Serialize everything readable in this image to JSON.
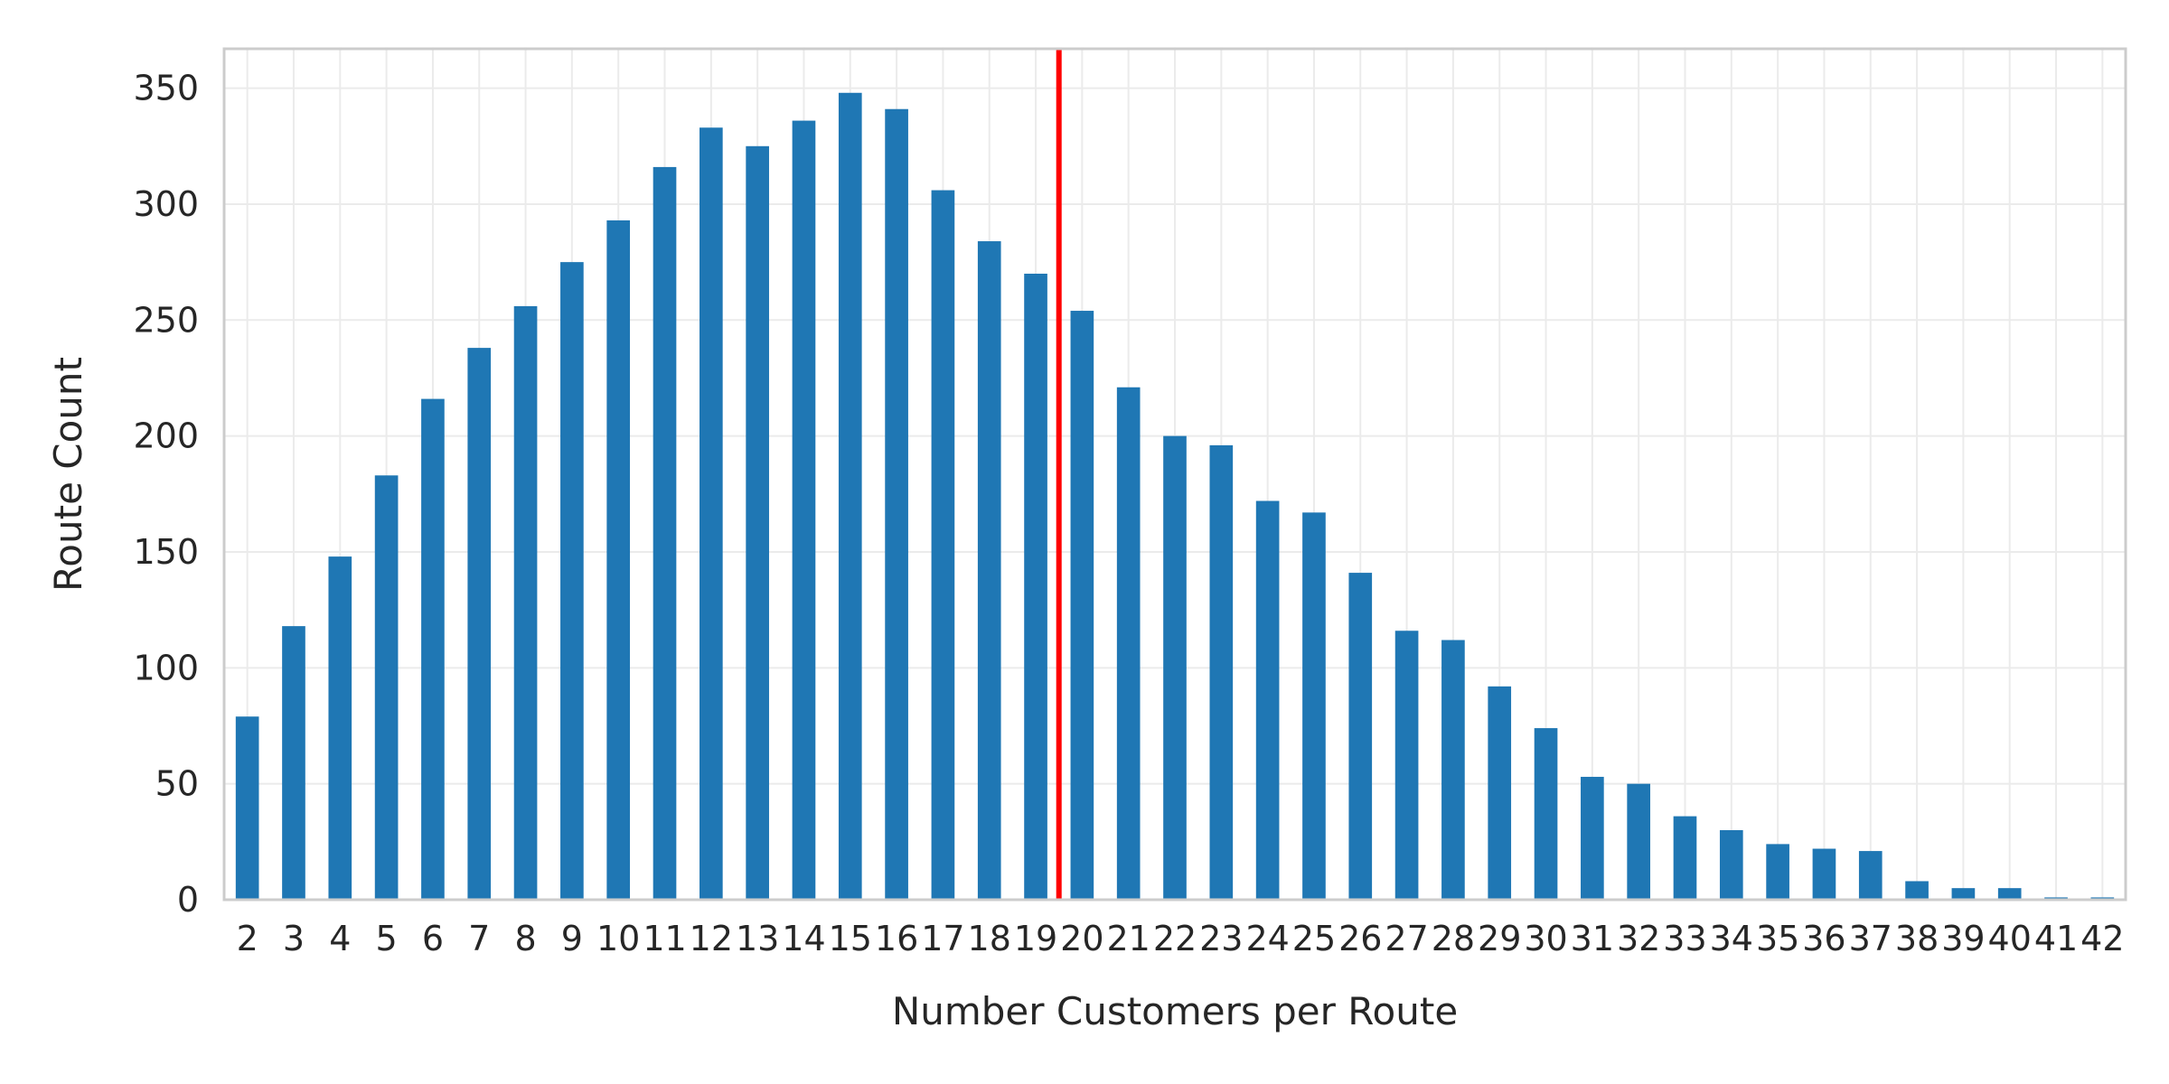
{
  "chart_data": {
    "type": "bar",
    "title": "",
    "xlabel": "Number Customers per Route",
    "ylabel": "Route Count",
    "categories": [
      "2",
      "3",
      "4",
      "5",
      "6",
      "7",
      "8",
      "9",
      "10",
      "11",
      "12",
      "13",
      "14",
      "15",
      "16",
      "17",
      "18",
      "19",
      "20",
      "21",
      "22",
      "23",
      "24",
      "25",
      "26",
      "27",
      "28",
      "29",
      "30",
      "31",
      "32",
      "33",
      "34",
      "35",
      "36",
      "37",
      "38",
      "39",
      "40",
      "41",
      "42"
    ],
    "values": [
      79,
      118,
      148,
      183,
      216,
      238,
      256,
      275,
      293,
      316,
      333,
      325,
      336,
      348,
      341,
      306,
      284,
      270,
      254,
      221,
      200,
      196,
      172,
      167,
      141,
      116,
      112,
      92,
      74,
      53,
      50,
      36,
      30,
      24,
      22,
      21,
      8,
      5,
      5,
      1,
      1
    ],
    "ylim": [
      0,
      367
    ],
    "yticks": [
      0,
      50,
      100,
      150,
      200,
      250,
      300,
      350
    ],
    "reference_line": {
      "orientation": "vertical",
      "x": 17.5,
      "color": "#ff0000"
    },
    "grid": true,
    "colors": {
      "bar": "#1f77b4",
      "grid": "#ebebeb",
      "spine": "#cccccc",
      "text": "#262626"
    }
  }
}
